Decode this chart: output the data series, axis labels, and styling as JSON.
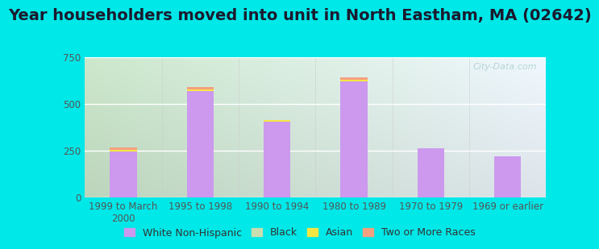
{
  "title": "Year householders moved into unit in North Eastham, MA (02642)",
  "categories": [
    "1999 to March\n2000",
    "1995 to 1998",
    "1990 to 1994",
    "1980 to 1989",
    "1970 to 1979",
    "1969 or earlier"
  ],
  "series": {
    "White Non-Hispanic": [
      248,
      570,
      407,
      620,
      262,
      220
    ],
    "Black": [
      0,
      0,
      0,
      0,
      0,
      0
    ],
    "Asian": [
      8,
      8,
      10,
      10,
      0,
      0
    ],
    "Two or More Races": [
      12,
      14,
      0,
      12,
      0,
      0
    ]
  },
  "colors": {
    "White Non-Hispanic": "#cc99ee",
    "Black": "#c8ddb0",
    "Asian": "#f5e642",
    "Two or More Races": "#f5a080"
  },
  "ylim": [
    0,
    750
  ],
  "yticks": [
    0,
    250,
    500,
    750
  ],
  "background_outer": "#00e8e8",
  "background_left": "#cce8cc",
  "background_right": "#e8f4f8",
  "grid_color": "#e0e8e0",
  "watermark": "City-Data.com",
  "title_fontsize": 14,
  "tick_fontsize": 8.5,
  "legend_fontsize": 9,
  "bar_width": 0.35
}
